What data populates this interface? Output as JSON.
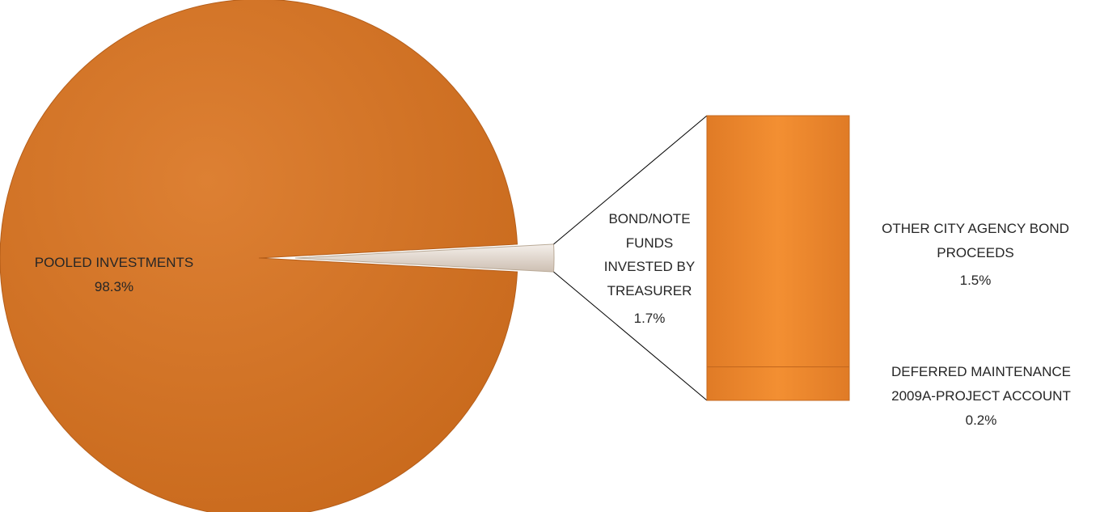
{
  "chart_data": {
    "type": "pie",
    "subtype": "bar-of-pie",
    "slices": [
      {
        "label": "POOLED INVESTMENTS",
        "value": 98.3,
        "value_label": "98.3%"
      },
      {
        "label": "BOND/NOTE FUNDS INVESTED BY TREASURER",
        "label_lines": [
          "BOND/NOTE",
          "FUNDS",
          "INVESTED BY",
          "TREASURER"
        ],
        "value": 1.7,
        "value_label": "1.7%"
      }
    ],
    "breakdown": {
      "of": "BOND/NOTE FUNDS INVESTED BY TREASURER",
      "segments": [
        {
          "label": "OTHER CITY AGENCY BOND PROCEEDS",
          "label_lines": [
            "OTHER CITY AGENCY BOND",
            "PROCEEDS"
          ],
          "value": 1.5,
          "value_label": "1.5%"
        },
        {
          "label": "DEFERRED MAINTENANCE 2009A-PROJECT ACCOUNT",
          "label_lines": [
            "DEFERRED MAINTENANCE",
            "2009A-PROJECT ACCOUNT"
          ],
          "value": 0.2,
          "value_label": "0.2%"
        }
      ]
    },
    "colors": {
      "slice": "#d57424",
      "slice_light": "#e0833a",
      "bar": "#f08a2c",
      "small_slice": "#ece3dc",
      "outline": "#a8551a",
      "connector": "#000000"
    }
  }
}
